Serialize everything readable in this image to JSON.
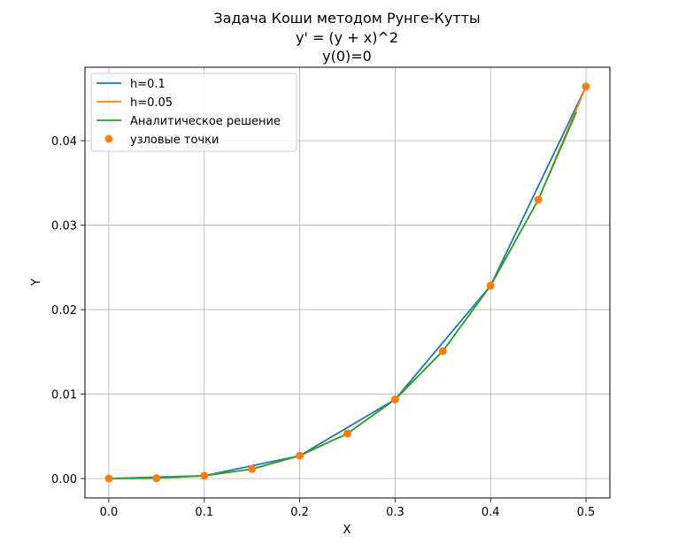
{
  "chart_data": {
    "type": "line",
    "title": [
      "Задача Коши методом Рунге-Кутты",
      "y' = (y + x)^2",
      "y(0)=0"
    ],
    "xlabel": "X",
    "ylabel": "Y",
    "xlim": [
      -0.025,
      0.525
    ],
    "ylim": [
      -0.0023,
      0.0487
    ],
    "xticks": [
      0.0,
      0.1,
      0.2,
      0.3,
      0.4,
      0.5
    ],
    "xtick_labels": [
      "0.0",
      "0.1",
      "0.2",
      "0.3",
      "0.4",
      "0.5"
    ],
    "yticks": [
      0.0,
      0.01,
      0.02,
      0.03,
      0.04
    ],
    "ytick_labels": [
      "0.00",
      "0.01",
      "0.02",
      "0.03",
      "0.04"
    ],
    "grid": true,
    "legend_position": "top-left",
    "series": [
      {
        "name": "h=0.1",
        "kind": "line",
        "color": "#1f77b4",
        "x": [
          0.0,
          0.1,
          0.2,
          0.3,
          0.4,
          0.5
        ],
        "y": [
          0.0,
          0.00033,
          0.0027,
          0.00937,
          0.02283,
          0.04641
        ]
      },
      {
        "name": "h=0.05",
        "kind": "line",
        "color": "#ff7f0e",
        "x": [
          0.0,
          0.05,
          0.1,
          0.15,
          0.2,
          0.25,
          0.3,
          0.35,
          0.4,
          0.45,
          0.5
        ],
        "y": [
          0.0,
          4e-05,
          0.00033,
          0.00113,
          0.0027,
          0.00533,
          0.00937,
          0.01509,
          0.02283,
          0.03301,
          0.04641
        ]
      },
      {
        "name": "Аналитическое решение",
        "kind": "line",
        "color": "#2ca02c",
        "x": [
          0.0,
          0.05,
          0.1,
          0.15,
          0.2,
          0.25,
          0.3,
          0.35,
          0.4,
          0.45,
          0.49
        ],
        "y": [
          0.0,
          4e-05,
          0.00033,
          0.00113,
          0.0027,
          0.00533,
          0.00937,
          0.01509,
          0.02283,
          0.03301,
          0.04341
        ]
      },
      {
        "name": "узловые точки",
        "kind": "scatter",
        "color": "#ff7f0e",
        "x": [
          0.0,
          0.05,
          0.1,
          0.15,
          0.2,
          0.25,
          0.3,
          0.35,
          0.4,
          0.45,
          0.5
        ],
        "y": [
          0.0,
          4e-05,
          0.00033,
          0.00113,
          0.0027,
          0.00533,
          0.00937,
          0.01509,
          0.02283,
          0.03301,
          0.04641
        ]
      }
    ]
  }
}
